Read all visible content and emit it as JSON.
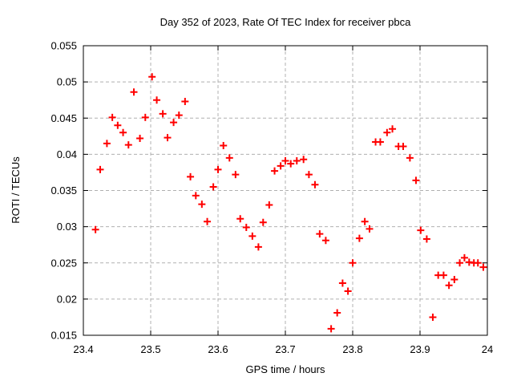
{
  "chart_data": {
    "type": "scatter",
    "title": "Day 352 of 2023, Rate Of TEC Index for receiver pbca",
    "xlabel": "GPS time / hours",
    "ylabel": "ROTI / TECUs",
    "xlim": [
      23.4,
      24.0
    ],
    "ylim": [
      0.015,
      0.055
    ],
    "x_ticks": [
      23.4,
      23.5,
      23.6,
      23.7,
      23.8,
      23.9,
      24.0
    ],
    "x_tick_labels": [
      "23.4",
      "23.5",
      "23.6",
      "23.7",
      "23.8",
      "23.9",
      "24"
    ],
    "y_ticks": [
      0.015,
      0.02,
      0.025,
      0.03,
      0.035,
      0.04,
      0.045,
      0.05,
      0.055
    ],
    "y_tick_labels": [
      "0.015",
      "0.02",
      "0.025",
      "0.03",
      "0.035",
      "0.04",
      "0.045",
      "0.05",
      "0.055"
    ],
    "grid": true,
    "legend": "none",
    "marker": {
      "shape": "plus",
      "color": "#ff0000",
      "size": 9
    },
    "colors": {
      "background": "#ffffff",
      "border": "#000000",
      "grid": "#b0b0b0",
      "text": "#000000"
    },
    "points": [
      [
        23.418,
        0.0296
      ],
      [
        23.425,
        0.0379
      ],
      [
        23.435,
        0.0415
      ],
      [
        23.443,
        0.0451
      ],
      [
        23.451,
        0.044
      ],
      [
        23.459,
        0.043
      ],
      [
        23.467,
        0.0413
      ],
      [
        23.475,
        0.0486
      ],
      [
        23.484,
        0.0422
      ],
      [
        23.492,
        0.0451
      ],
      [
        23.502,
        0.0507
      ],
      [
        23.509,
        0.0475
      ],
      [
        23.518,
        0.0456
      ],
      [
        23.525,
        0.0423
      ],
      [
        23.534,
        0.0444
      ],
      [
        23.542,
        0.0454
      ],
      [
        23.551,
        0.0473
      ],
      [
        23.559,
        0.0369
      ],
      [
        23.567,
        0.0343
      ],
      [
        23.576,
        0.0331
      ],
      [
        23.584,
        0.0307
      ],
      [
        23.593,
        0.0355
      ],
      [
        23.6,
        0.0379
      ],
      [
        23.608,
        0.0412
      ],
      [
        23.617,
        0.0395
      ],
      [
        23.626,
        0.0372
      ],
      [
        23.633,
        0.0311
      ],
      [
        23.642,
        0.0299
      ],
      [
        23.651,
        0.0287
      ],
      [
        23.66,
        0.0272
      ],
      [
        23.667,
        0.0306
      ],
      [
        23.676,
        0.033
      ],
      [
        23.684,
        0.0377
      ],
      [
        23.693,
        0.0384
      ],
      [
        23.7,
        0.0391
      ],
      [
        23.708,
        0.0387
      ],
      [
        23.717,
        0.0391
      ],
      [
        23.727,
        0.0393
      ],
      [
        23.735,
        0.0372
      ],
      [
        23.744,
        0.0358
      ],
      [
        23.751,
        0.029
      ],
      [
        23.76,
        0.0281
      ],
      [
        23.768,
        0.0159
      ],
      [
        23.777,
        0.0181
      ],
      [
        23.785,
        0.0222
      ],
      [
        23.793,
        0.0211
      ],
      [
        23.8,
        0.025
      ],
      [
        23.81,
        0.0284
      ],
      [
        23.818,
        0.0307
      ],
      [
        23.825,
        0.0297
      ],
      [
        23.834,
        0.0417
      ],
      [
        23.841,
        0.0417
      ],
      [
        23.851,
        0.043
      ],
      [
        23.859,
        0.0435
      ],
      [
        23.868,
        0.0411
      ],
      [
        23.875,
        0.0411
      ],
      [
        23.885,
        0.0395
      ],
      [
        23.894,
        0.0364
      ],
      [
        23.901,
        0.0295
      ],
      [
        23.91,
        0.0283
      ],
      [
        23.919,
        0.0175
      ],
      [
        23.927,
        0.0233
      ],
      [
        23.935,
        0.0233
      ],
      [
        23.943,
        0.0219
      ],
      [
        23.951,
        0.0227
      ],
      [
        23.959,
        0.025
      ],
      [
        23.966,
        0.0257
      ],
      [
        23.973,
        0.0251
      ],
      [
        23.98,
        0.025
      ],
      [
        23.986,
        0.025
      ],
      [
        23.994,
        0.0244
      ]
    ]
  }
}
